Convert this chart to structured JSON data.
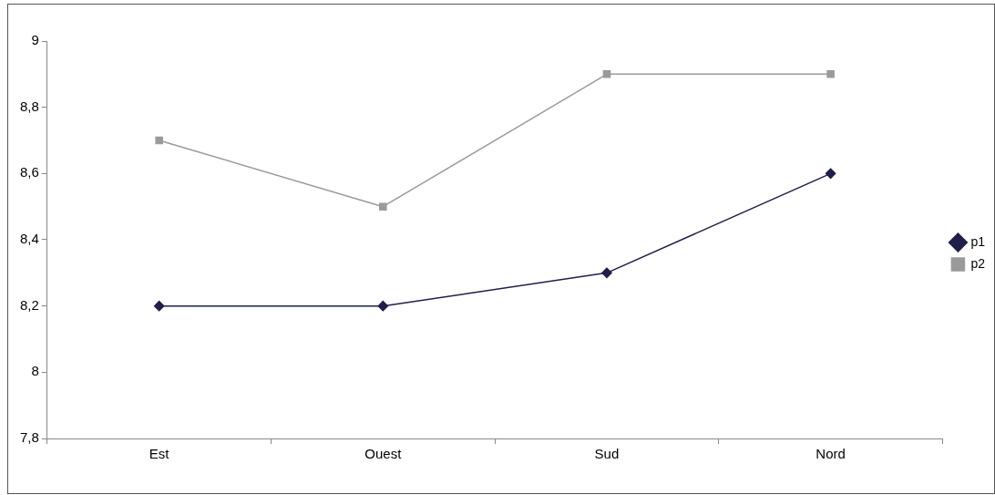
{
  "chart_data": {
    "type": "line",
    "categories": [
      "Est",
      "Ouest",
      "Sud",
      "Nord"
    ],
    "series": [
      {
        "name": "p1",
        "color": "#1f1f4a",
        "values": [
          8.2,
          8.2,
          8.3,
          8.6
        ],
        "marker": "diamond"
      },
      {
        "name": "p2",
        "color": "#9a9a9a",
        "values": [
          8.7,
          8.5,
          8.9,
          8.9
        ],
        "marker": "square"
      }
    ],
    "ylim": [
      7.8,
      9
    ],
    "yticks": [
      {
        "value": 7.8,
        "label": "7,8"
      },
      {
        "value": 8,
        "label": "8"
      },
      {
        "value": 8.2,
        "label": "8,2"
      },
      {
        "value": 8.4,
        "label": "8,4"
      },
      {
        "value": 8.6,
        "label": "8,6"
      },
      {
        "value": 8.8,
        "label": "8,8"
      },
      {
        "value": 9,
        "label": "9"
      }
    ],
    "grid": false,
    "legend": "right",
    "line_style": "solid"
  }
}
